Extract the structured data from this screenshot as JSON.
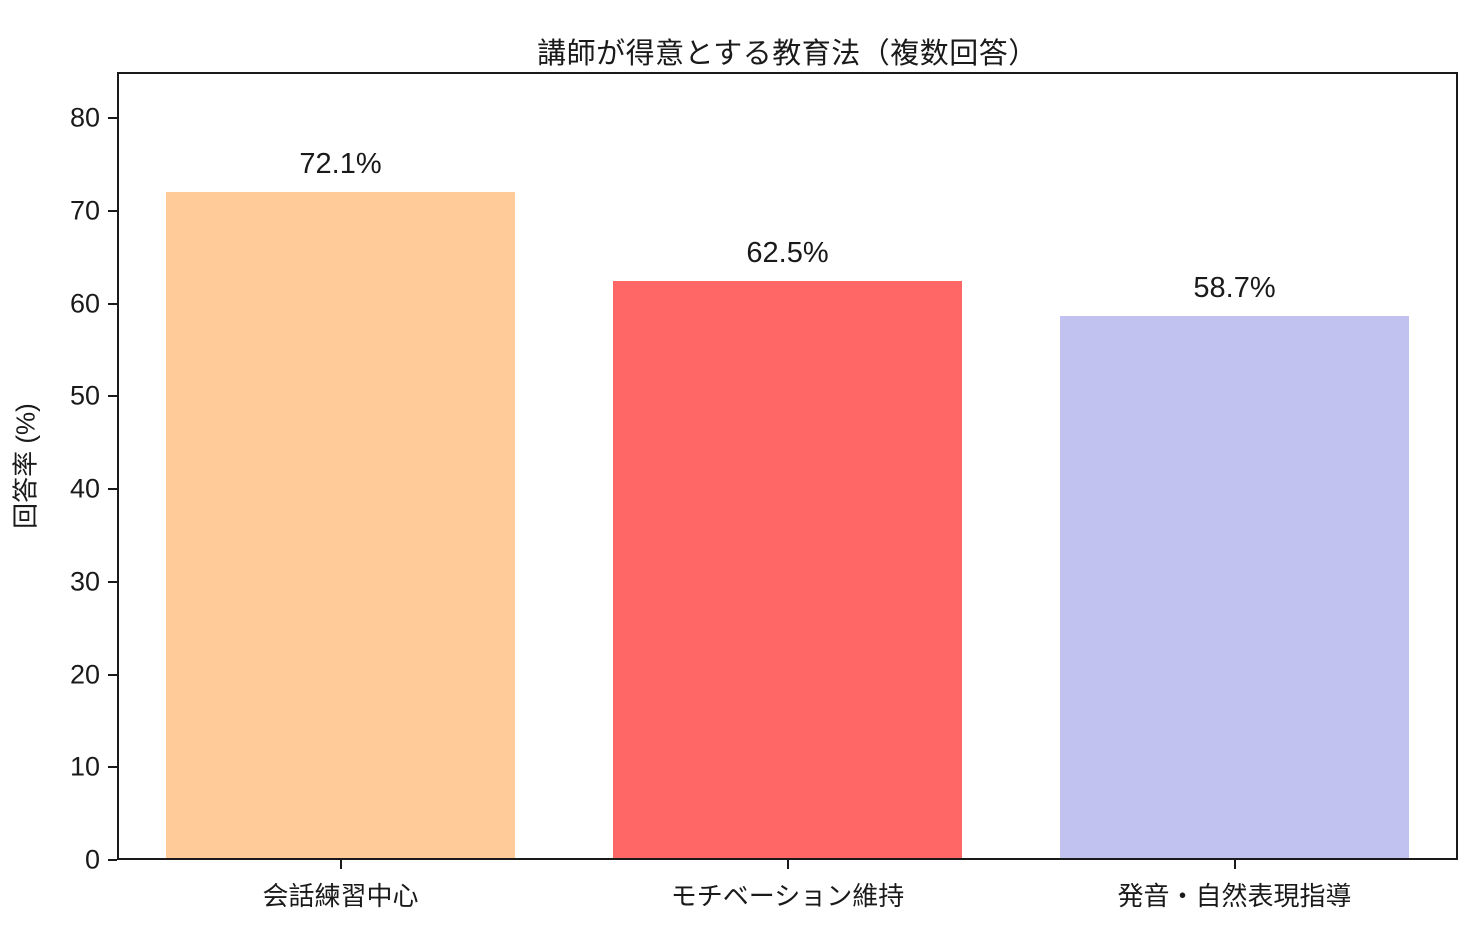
{
  "chart_data": {
    "type": "bar",
    "title": "講師が得意とする教育法（複数回答）",
    "categories": [
      "会話練習中心",
      "モチベーション維持",
      "発音・自然表現指導"
    ],
    "values": [
      72.1,
      62.5,
      58.7
    ],
    "value_labels": [
      "72.1%",
      "62.5%",
      "58.7%"
    ],
    "bar_colors": [
      "#ffcc99",
      "#ff6666",
      "#c2c2f0"
    ],
    "xlabel": "",
    "ylabel": "回答率 (%)",
    "yticks": [
      0,
      10,
      20,
      30,
      40,
      50,
      60,
      70,
      80
    ],
    "ylim": [
      0,
      85
    ],
    "grid": false,
    "legend": null,
    "text_color": "#1a1a1a",
    "background_color": "#ffffff"
  }
}
